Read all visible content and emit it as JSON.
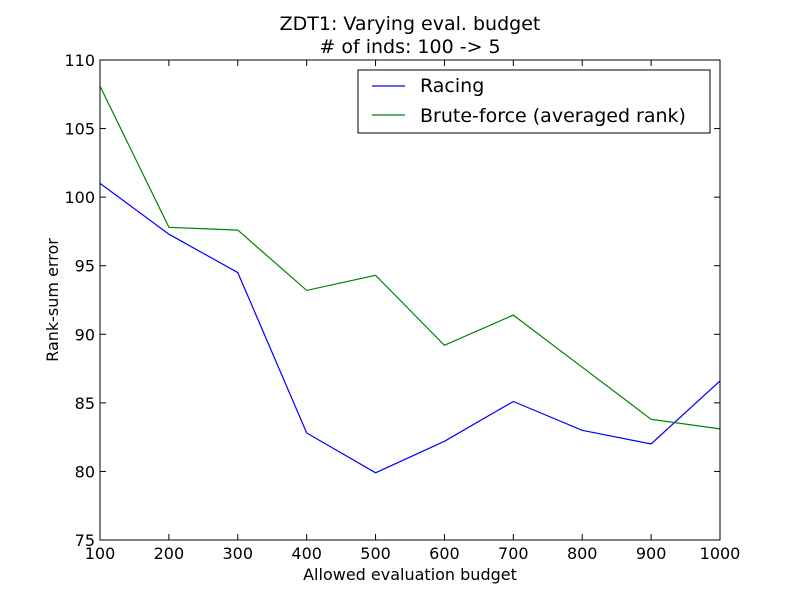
{
  "chart_data": {
    "type": "line",
    "title": "ZDT1: Varying eval. budget",
    "subtitle": "# of inds: 100 -> 5",
    "xlabel": "Allowed evaluation budget",
    "ylabel": "Rank-sum error",
    "xlim": [
      100,
      1000
    ],
    "ylim": [
      75,
      110
    ],
    "xticks": [
      100,
      200,
      300,
      400,
      500,
      600,
      700,
      800,
      900,
      1000
    ],
    "yticks": [
      75,
      80,
      85,
      90,
      95,
      100,
      105,
      110
    ],
    "grid": false,
    "legend_position": "top-right",
    "x": [
      100,
      200,
      300,
      400,
      500,
      600,
      700,
      800,
      900,
      1000
    ],
    "series": [
      {
        "name": "Racing",
        "color": "#0000ff",
        "values": [
          101.0,
          97.3,
          94.5,
          82.8,
          79.9,
          82.2,
          85.1,
          83.0,
          82.0,
          86.6
        ]
      },
      {
        "name": "Brute-force (averaged rank)",
        "color": "#008000",
        "values": [
          108.1,
          97.8,
          97.6,
          93.2,
          94.3,
          89.2,
          91.4,
          87.6,
          83.8,
          83.1
        ]
      }
    ]
  }
}
